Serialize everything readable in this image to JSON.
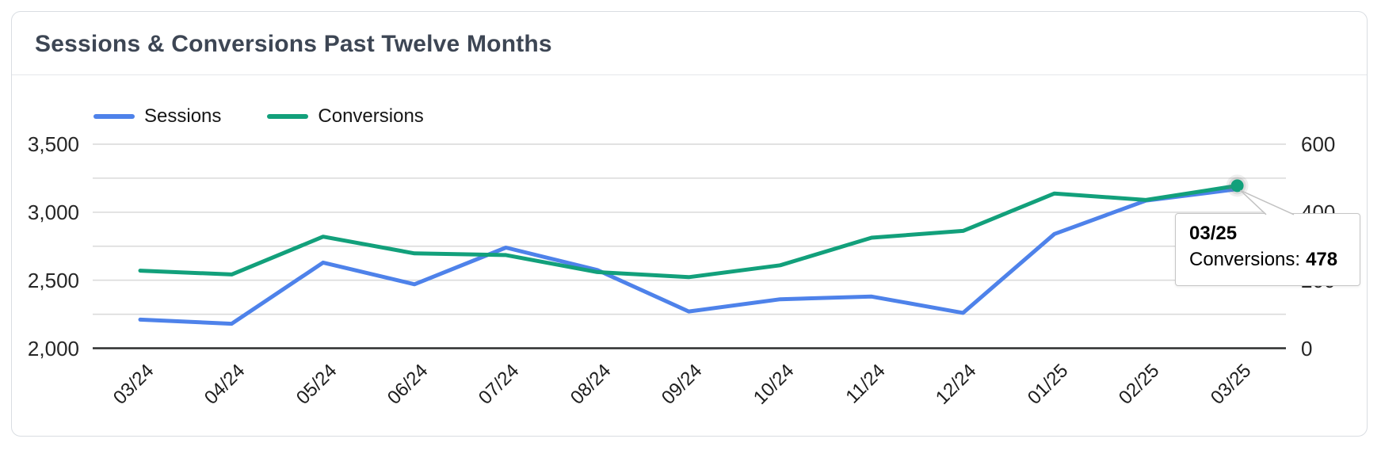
{
  "tooltip": {
    "title": "03/25",
    "series_label": "Conversions:",
    "value": "478"
  },
  "chart_data": {
    "type": "line",
    "title": "Sessions & Conversions Past Twelve Months",
    "categories": [
      "03/24",
      "04/24",
      "05/24",
      "06/24",
      "07/24",
      "08/24",
      "09/24",
      "10/24",
      "11/24",
      "12/24",
      "01/25",
      "02/25",
      "03/25"
    ],
    "series": [
      {
        "name": "Sessions",
        "axis": "left",
        "color": "#4e82ea",
        "values": [
          2210,
          2180,
          2630,
          2470,
          2740,
          2575,
          2270,
          2360,
          2380,
          2260,
          2840,
          3085,
          3170
        ]
      },
      {
        "name": "Conversions",
        "axis": "right",
        "color": "#12a07b",
        "values": [
          228,
          217,
          328,
          279,
          274,
          224,
          209,
          244,
          325,
          345,
          455,
          436,
          478
        ]
      }
    ],
    "left_axis": {
      "min": 2000,
      "max": 3500,
      "tick_values": [
        3500,
        3000,
        2500,
        2000
      ],
      "tick_labels": [
        "3,500",
        "3,000",
        "2,500",
        "2,000"
      ]
    },
    "right_axis": {
      "min": 0,
      "max": 600,
      "tick_values": [
        600,
        400,
        200,
        0
      ],
      "tick_labels": [
        "600",
        "400",
        "200",
        "0"
      ]
    },
    "grid": true,
    "minor_grid": true,
    "legend_position": "top-left",
    "highlight": {
      "category": "03/25",
      "series": "Conversions",
      "value": 478
    },
    "colors": {
      "title_text": "#3d4654",
      "axis_text": "#262626",
      "gridline": "#d9d9d9",
      "axis_line": "#2d2e2e",
      "card_border": "#d9dde2",
      "tooltip_border": "#c6c6c6"
    }
  }
}
